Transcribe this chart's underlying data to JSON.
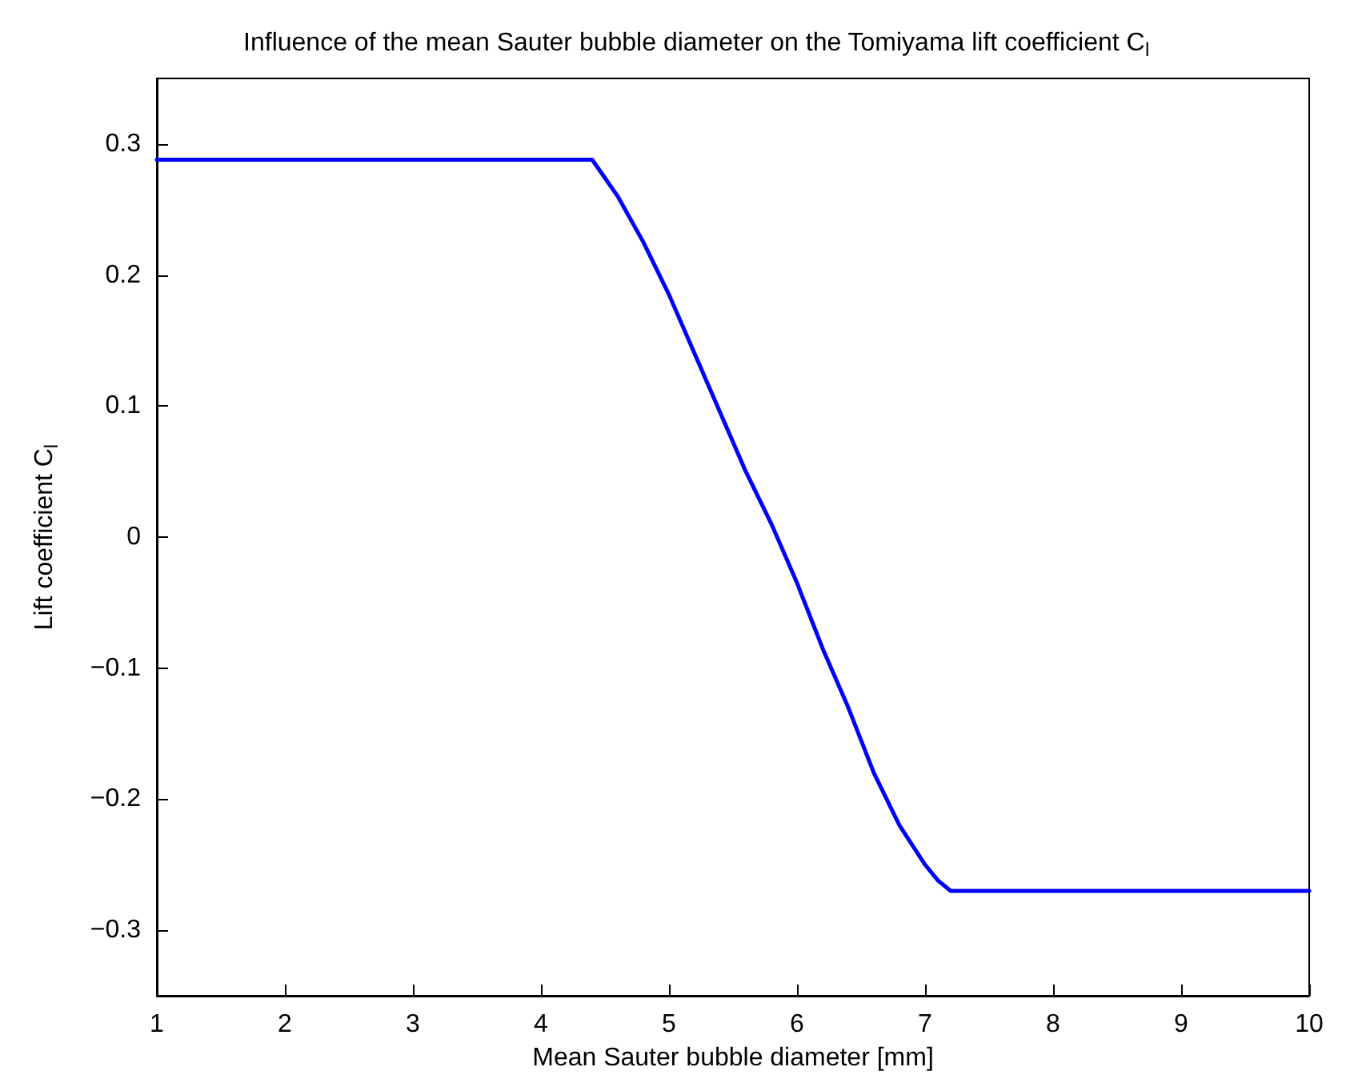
{
  "chart_data": {
    "type": "line",
    "title": "Influence of the mean Sauter bubble diameter on the Tomiyama lift coefficient C$_{l}$",
    "xlabel": "Mean Sauter bubble diameter [mm]",
    "ylabel": "Lift coefficient C$_{l}$",
    "x": [
      1,
      4.4,
      4.6,
      4.8,
      5.0,
      5.2,
      5.4,
      5.6,
      5.8,
      6.0,
      6.2,
      6.4,
      6.6,
      6.8,
      7.0,
      7.1,
      7.2,
      10
    ],
    "series": [
      {
        "color": "#0000ff",
        "values": [
          0.288,
          0.288,
          0.26,
          0.225,
          0.185,
          0.14,
          0.095,
          0.05,
          0.01,
          -0.035,
          -0.085,
          -0.13,
          -0.18,
          -0.22,
          -0.25,
          -0.262,
          -0.27,
          -0.27
        ]
      }
    ],
    "xlim": [
      1,
      10
    ],
    "xticks": [
      1,
      2,
      3,
      4,
      5,
      6,
      7,
      8,
      9,
      10
    ],
    "ylim": [
      -0.35,
      0.35
    ],
    "yticks": [
      -0.3,
      -0.2,
      -0.1,
      0,
      0.1,
      0.2,
      0.3
    ],
    "grid": false,
    "marker": "none",
    "line_style": "solid"
  }
}
